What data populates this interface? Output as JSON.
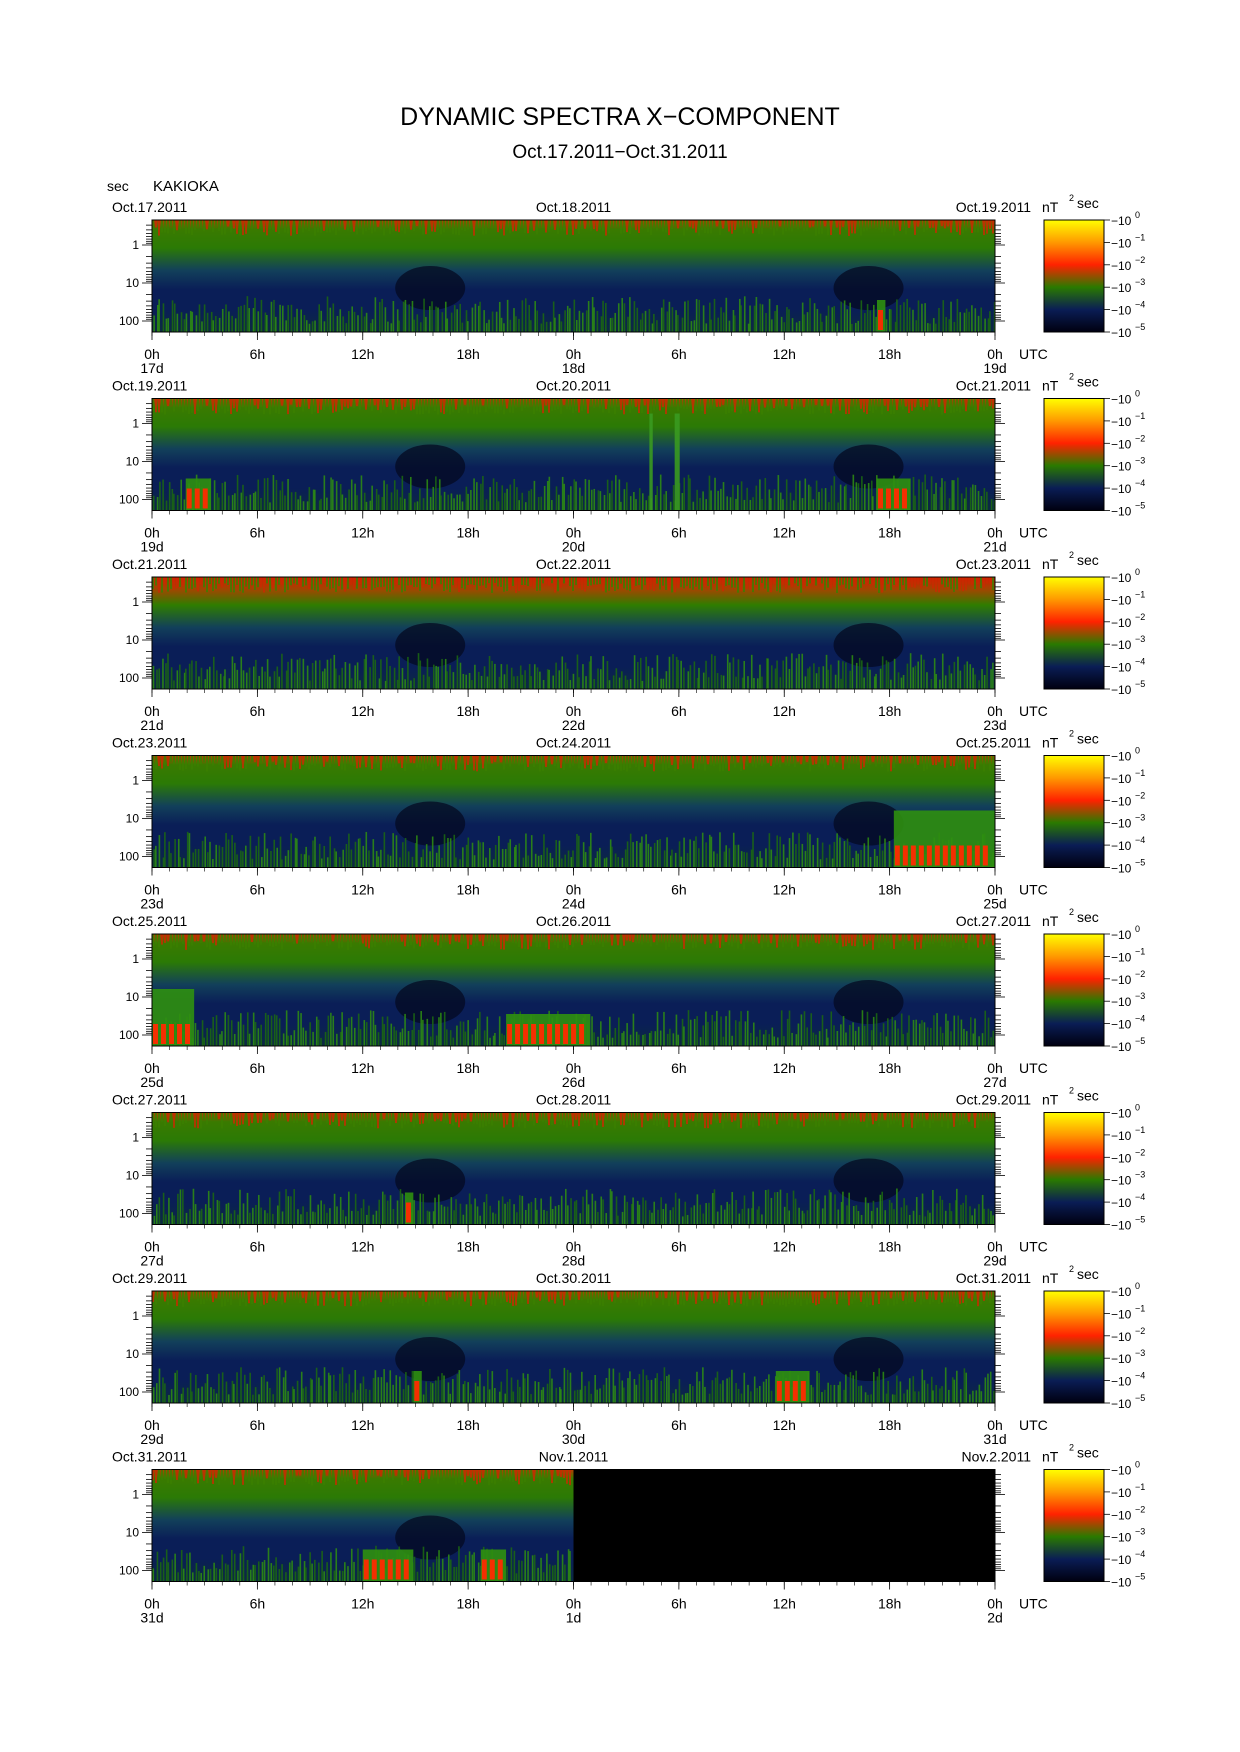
{
  "title": "DYNAMIC SPECTRA X−COMPONENT",
  "subtitle": "Oct.17.2011−Oct.31.2011",
  "station": "KAKIOKA",
  "y_unit": "sec",
  "colorbar": {
    "unit_base": "nT",
    "unit_exp": "2",
    "unit_tail": "sec",
    "ticks": [
      {
        "base": "10",
        "exp": "0"
      },
      {
        "base": "10",
        "exp": "−1"
      },
      {
        "base": "10",
        "exp": "−2"
      },
      {
        "base": "10",
        "exp": "−3"
      },
      {
        "base": "10",
        "exp": "−4"
      },
      {
        "base": "10",
        "exp": "−5"
      }
    ],
    "stops": [
      "#ffff00",
      "#ff9900",
      "#ff2200",
      "#2a7a00",
      "#0a1d55",
      "#000010"
    ]
  },
  "chart_data": {
    "type": "heatmap",
    "xlabel": "UTC",
    "ylabel": "sec",
    "y_scale": "log",
    "y_ticks": [
      "1",
      "10",
      "100"
    ],
    "x_ticks": [
      "0h",
      "6h",
      "12h",
      "18h",
      "0h",
      "6h",
      "12h",
      "18h",
      "0h"
    ],
    "x_axis_unit": "UTC",
    "panels": [
      {
        "dates": [
          "Oct.17.2011",
          "Oct.18.2011",
          "Oct.19.2011"
        ],
        "days": [
          "17d",
          "18d",
          "19d"
        ],
        "data_end_fraction": 1.0,
        "events": [
          {
            "x": 0.86,
            "w": 0.01,
            "kind": "red"
          }
        ]
      },
      {
        "dates": [
          "Oct.19.2011",
          "Oct.20.2011",
          "Oct.21.2011"
        ],
        "days": [
          "19d",
          "20d",
          "21d"
        ],
        "data_end_fraction": 1.0,
        "events": [
          {
            "x": 0.04,
            "w": 0.03,
            "kind": "red"
          },
          {
            "x": 0.59,
            "w": 0.004,
            "kind": "streak"
          },
          {
            "x": 0.62,
            "w": 0.006,
            "kind": "streak"
          },
          {
            "x": 0.86,
            "w": 0.04,
            "kind": "red"
          }
        ]
      },
      {
        "dates": [
          "Oct.21.2011",
          "Oct.22.2011",
          "Oct.23.2011"
        ],
        "days": [
          "21d",
          "22d",
          "23d"
        ],
        "data_end_fraction": 1.0,
        "events": [],
        "top_red": true
      },
      {
        "dates": [
          "Oct.23.2011",
          "Oct.24.2011",
          "Oct.25.2011"
        ],
        "days": [
          "23d",
          "24d",
          "25d"
        ],
        "data_end_fraction": 1.0,
        "events": [
          {
            "x": 0.88,
            "w": 0.12,
            "kind": "red-tall"
          }
        ]
      },
      {
        "dates": [
          "Oct.25.2011",
          "Oct.26.2011",
          "Oct.27.2011"
        ],
        "days": [
          "25d",
          "26d",
          "27d"
        ],
        "data_end_fraction": 1.0,
        "events": [
          {
            "x": 0.0,
            "w": 0.05,
            "kind": "red-tall"
          },
          {
            "x": 0.42,
            "w": 0.1,
            "kind": "red"
          }
        ]
      },
      {
        "dates": [
          "Oct.27.2011",
          "Oct.28.2011",
          "Oct.29.2011"
        ],
        "days": [
          "27d",
          "28d",
          "29d"
        ],
        "data_end_fraction": 1.0,
        "events": [
          {
            "x": 0.3,
            "w": 0.01,
            "kind": "red"
          }
        ]
      },
      {
        "dates": [
          "Oct.29.2011",
          "Oct.30.2011",
          "Oct.31.2011"
        ],
        "days": [
          "29d",
          "30d",
          "31d"
        ],
        "data_end_fraction": 1.0,
        "events": [
          {
            "x": 0.31,
            "w": 0.01,
            "kind": "red"
          },
          {
            "x": 0.74,
            "w": 0.04,
            "kind": "red"
          }
        ]
      },
      {
        "dates": [
          "Oct.31.2011",
          "Nov.1.2011",
          "Nov.2.2011"
        ],
        "days": [
          "31d",
          "1d",
          "2d"
        ],
        "data_end_fraction": 0.5,
        "events": [
          {
            "x": 0.25,
            "w": 0.06,
            "kind": "red"
          },
          {
            "x": 0.39,
            "w": 0.03,
            "kind": "red"
          }
        ]
      }
    ]
  }
}
